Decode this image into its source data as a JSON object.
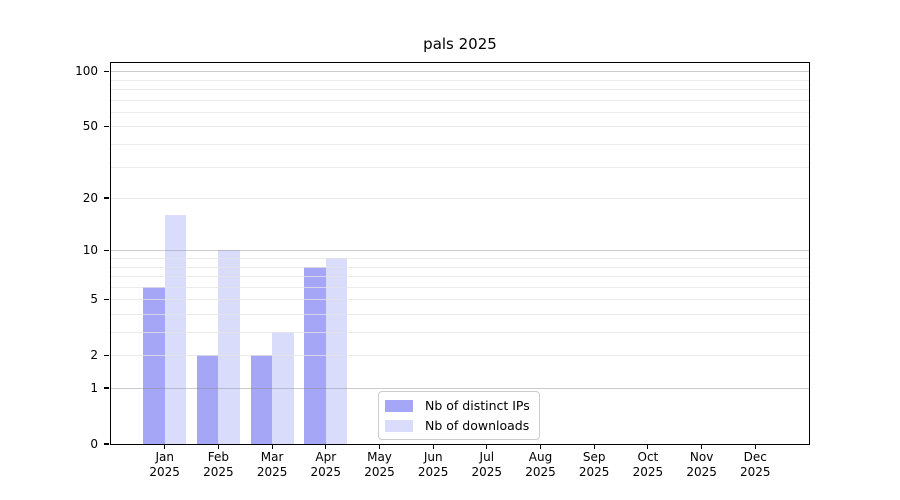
{
  "chart_data": {
    "type": "bar",
    "title": "pals 2025",
    "categories": [
      "Jan",
      "Feb",
      "Mar",
      "Apr",
      "May",
      "Jun",
      "Jul",
      "Aug",
      "Sep",
      "Oct",
      "Nov",
      "Dec"
    ],
    "x_tick_year": "2025",
    "series": [
      {
        "name": "Nb of distinct IPs",
        "color": "#a6a6f7",
        "values": [
          6,
          2,
          2,
          8,
          0,
          0,
          0,
          0,
          0,
          0,
          0,
          0
        ]
      },
      {
        "name": "Nb of downloads",
        "color": "#dadcfb",
        "values": [
          16,
          10,
          3,
          9,
          0,
          0,
          0,
          0,
          0,
          0,
          0,
          0
        ]
      }
    ],
    "yscale": "log1p",
    "ylim": [
      0,
      110.7
    ],
    "y_ticks": [
      {
        "v": 0,
        "label": "0"
      },
      {
        "v": 1,
        "label": "1"
      },
      {
        "v": 2,
        "label": "2"
      },
      {
        "v": 5,
        "label": "5"
      },
      {
        "v": 10,
        "label": "10"
      },
      {
        "v": 20,
        "label": "20"
      },
      {
        "v": 50,
        "label": "50"
      },
      {
        "v": 100,
        "label": "100"
      }
    ],
    "grid_major": [
      1,
      10,
      100
    ],
    "grid_minor": [
      2,
      3,
      4,
      5,
      6,
      7,
      8,
      9,
      20,
      30,
      40,
      50,
      60,
      70,
      80,
      90
    ],
    "grid": true,
    "legend_position": "lower center",
    "colors": {
      "background": "#ffffff",
      "spine": "#000000",
      "grid_major": "#c9c9c9",
      "grid_minor": "#ececec"
    }
  }
}
